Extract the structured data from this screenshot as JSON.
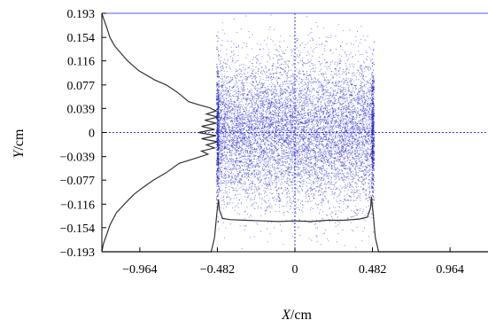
{
  "chart_data": {
    "type": "scatter",
    "xlabel_var": "X",
    "xlabel_unit": "/cm",
    "ylabel_var": "Y",
    "ylabel_unit": "/cm",
    "xlim": [
      -1.2,
      1.2
    ],
    "ylim": [
      -0.193,
      0.193
    ],
    "x_ticks": [
      -0.964,
      -0.482,
      0,
      0.482,
      0.964
    ],
    "x_tick_labels": [
      "−0.964",
      "−0.482",
      "0",
      "0.482",
      "0.964"
    ],
    "y_ticks": [
      0.193,
      0.154,
      0.116,
      0.077,
      0.039,
      0,
      -0.039,
      -0.077,
      -0.116,
      -0.154,
      -0.193
    ],
    "y_tick_labels": [
      "0.193",
      "0.154",
      "0.116",
      "0.077",
      "0.039",
      "0",
      "−0.039",
      "−0.077",
      "−0.116",
      "−0.154",
      "−0.193"
    ],
    "grid": false,
    "series": [
      {
        "kind": "scatter",
        "description_points": "uniform-in-x, gaussian-like-in-y particle cloud",
        "x_range": [
          -0.482,
          0.482
        ],
        "y_center": 0,
        "y_sigma": 0.06,
        "point_count": 9000
      },
      {
        "kind": "profile-x",
        "x": [
          -1.2,
          -0.52,
          -0.5,
          -0.485,
          -0.475,
          -0.47,
          -0.45,
          -0.4,
          -0.3,
          -0.2,
          -0.1,
          0,
          0.1,
          0.2,
          0.3,
          0.4,
          0.45,
          0.47,
          0.475,
          0.485,
          0.5,
          0.52,
          1.2
        ],
        "y": [
          -0.193,
          -0.193,
          -0.17,
          -0.13,
          -0.108,
          -0.125,
          -0.139,
          -0.141,
          -0.142,
          -0.143,
          -0.144,
          -0.143,
          -0.144,
          -0.142,
          -0.142,
          -0.14,
          -0.137,
          -0.122,
          -0.104,
          -0.128,
          -0.17,
          -0.193,
          -0.193
        ]
      },
      {
        "kind": "profile-y",
        "y": [
          0.193,
          0.185,
          0.17,
          0.154,
          0.14,
          0.125,
          0.116,
          0.1,
          0.085,
          0.077,
          0.065,
          0.05,
          0.045,
          0.04,
          0.035,
          0.03,
          0.025,
          0.02,
          0.015,
          0.01,
          0.005,
          0,
          -0.005,
          -0.01,
          -0.015,
          -0.02,
          -0.025,
          -0.03,
          -0.035,
          -0.04,
          -0.045,
          -0.05,
          -0.065,
          -0.077,
          -0.09,
          -0.1,
          -0.116,
          -0.13,
          -0.15,
          -0.165,
          -0.18,
          -0.193
        ],
        "x": [
          -1.2,
          -1.19,
          -1.17,
          -1.15,
          -1.12,
          -1.07,
          -1.04,
          -0.97,
          -0.87,
          -0.8,
          -0.73,
          -0.66,
          -0.6,
          -0.53,
          -0.49,
          -0.55,
          -0.48,
          -0.56,
          -0.49,
          -0.58,
          -0.5,
          -0.6,
          -0.49,
          -0.58,
          -0.48,
          -0.55,
          -0.5,
          -0.58,
          -0.54,
          -0.6,
          -0.66,
          -0.72,
          -0.8,
          -0.88,
          -0.95,
          -1.0,
          -1.06,
          -1.11,
          -1.15,
          -1.17,
          -1.19,
          -1.2
        ]
      }
    ],
    "colors": {
      "points": "#1a1ad6",
      "guide_lines": "#3333ff",
      "profile": "#333333",
      "frame": "#5555ff",
      "axes": "#000000"
    }
  }
}
